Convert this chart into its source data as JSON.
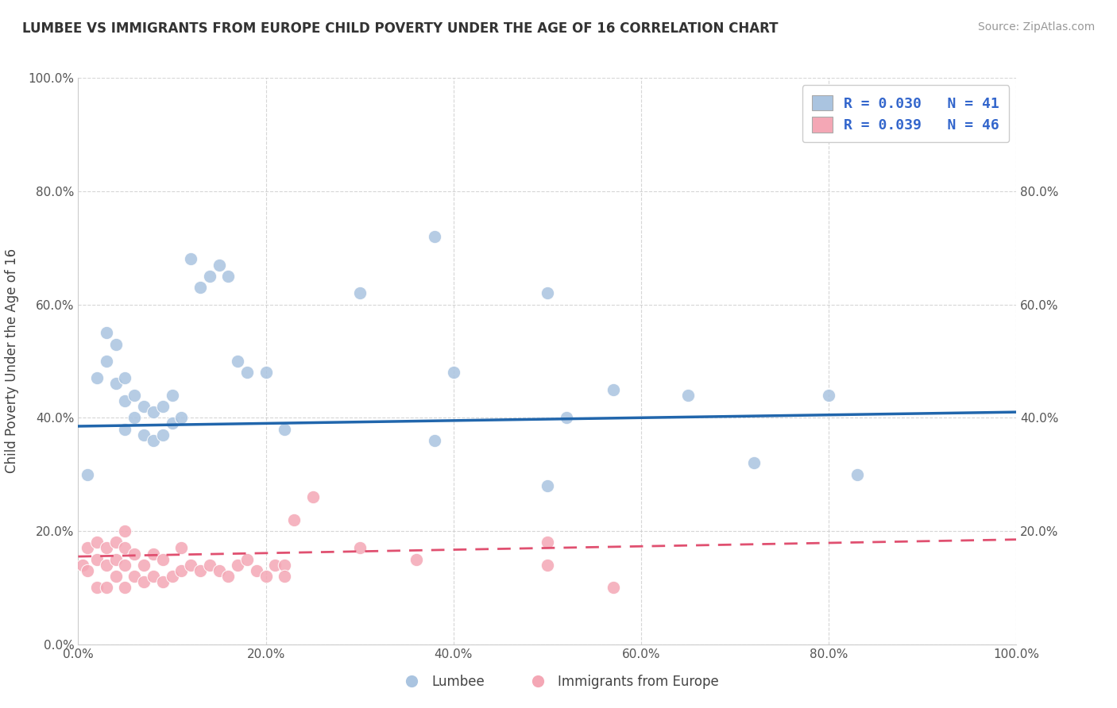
{
  "title": "LUMBEE VS IMMIGRANTS FROM EUROPE CHILD POVERTY UNDER THE AGE OF 16 CORRELATION CHART",
  "source": "Source: ZipAtlas.com",
  "ylabel": "Child Poverty Under the Age of 16",
  "legend_labels": [
    "Lumbee",
    "Immigrants from Europe"
  ],
  "lumbee_R": 0.03,
  "lumbee_N": 41,
  "europe_R": 0.039,
  "europe_N": 46,
  "xlim": [
    0.0,
    1.0
  ],
  "ylim": [
    0.0,
    1.0
  ],
  "xticks": [
    0.0,
    0.2,
    0.4,
    0.6,
    0.8,
    1.0
  ],
  "yticks": [
    0.0,
    0.2,
    0.4,
    0.6,
    0.8,
    1.0
  ],
  "xticklabels": [
    "0.0%",
    "20.0%",
    "40.0%",
    "60.0%",
    "80.0%",
    "100.0%"
  ],
  "yticklabels": [
    "0.0%",
    "20.0%",
    "40.0%",
    "60.0%",
    "80.0%",
    "100.0%"
  ],
  "right_yticklabels": [
    "20.0%",
    "40.0%",
    "60.0%",
    "80.0%"
  ],
  "right_yticks": [
    0.2,
    0.4,
    0.6,
    0.8
  ],
  "blue_color": "#aac4e0",
  "pink_color": "#f4a7b5",
  "blue_line_color": "#2166ac",
  "pink_line_color": "#e05070",
  "grid_color": "#cccccc",
  "title_color": "#333333",
  "legend_text_color": "#3366cc",
  "source_color": "#999999",
  "background_color": "#ffffff",
  "blue_trend_start": 0.385,
  "blue_trend_end": 0.41,
  "pink_trend_start": 0.155,
  "pink_trend_end": 0.185,
  "lumbee_x": [
    0.01,
    0.02,
    0.03,
    0.03,
    0.04,
    0.04,
    0.05,
    0.05,
    0.05,
    0.06,
    0.06,
    0.07,
    0.07,
    0.08,
    0.08,
    0.09,
    0.09,
    0.1,
    0.1,
    0.11,
    0.12,
    0.13,
    0.14,
    0.15,
    0.16,
    0.17,
    0.18,
    0.2,
    0.22,
    0.3,
    0.4,
    0.5,
    0.52,
    0.57,
    0.65,
    0.72,
    0.8,
    0.83,
    0.5,
    0.38,
    0.38
  ],
  "lumbee_y": [
    0.3,
    0.47,
    0.5,
    0.55,
    0.46,
    0.53,
    0.38,
    0.43,
    0.47,
    0.4,
    0.44,
    0.37,
    0.42,
    0.36,
    0.41,
    0.37,
    0.42,
    0.39,
    0.44,
    0.4,
    0.68,
    0.63,
    0.65,
    0.67,
    0.65,
    0.5,
    0.48,
    0.48,
    0.38,
    0.62,
    0.48,
    0.62,
    0.4,
    0.45,
    0.44,
    0.32,
    0.44,
    0.3,
    0.28,
    0.36,
    0.72
  ],
  "europe_x": [
    0.005,
    0.01,
    0.01,
    0.02,
    0.02,
    0.02,
    0.03,
    0.03,
    0.03,
    0.04,
    0.04,
    0.04,
    0.05,
    0.05,
    0.05,
    0.05,
    0.06,
    0.06,
    0.07,
    0.07,
    0.08,
    0.08,
    0.09,
    0.09,
    0.1,
    0.11,
    0.11,
    0.12,
    0.13,
    0.14,
    0.15,
    0.16,
    0.17,
    0.18,
    0.19,
    0.2,
    0.21,
    0.23,
    0.25,
    0.3,
    0.36,
    0.5,
    0.57,
    0.5,
    0.22,
    0.22
  ],
  "europe_y": [
    0.14,
    0.13,
    0.17,
    0.1,
    0.15,
    0.18,
    0.1,
    0.14,
    0.17,
    0.12,
    0.15,
    0.18,
    0.1,
    0.14,
    0.17,
    0.2,
    0.12,
    0.16,
    0.11,
    0.14,
    0.12,
    0.16,
    0.11,
    0.15,
    0.12,
    0.13,
    0.17,
    0.14,
    0.13,
    0.14,
    0.13,
    0.12,
    0.14,
    0.15,
    0.13,
    0.12,
    0.14,
    0.22,
    0.26,
    0.17,
    0.15,
    0.14,
    0.1,
    0.18,
    0.14,
    0.12
  ]
}
